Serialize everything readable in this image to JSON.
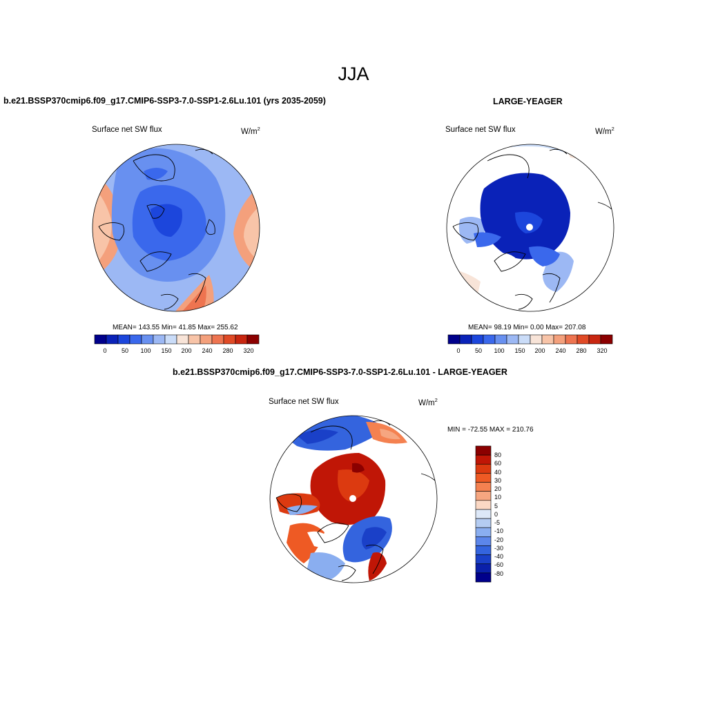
{
  "main_title": "JJA",
  "left_panel": {
    "case_title": "b.e21.BSSP370cmip6.f09_g17.CMIP6-SSP3-7.0-SSP1-2.6Lu.101 (yrs 2035-2059)",
    "variable": "Surface net SW flux",
    "units": "W/m",
    "units_sup": "2",
    "stats": "MEAN= 143.55  Min=  41.85  Max= 255.62",
    "colorbar_ticks": [
      "0",
      "50",
      "100",
      "150",
      "200",
      "240",
      "280",
      "320"
    ]
  },
  "right_panel": {
    "case_title": "LARGE-YEAGER",
    "variable": "Surface net SW flux",
    "units": "W/m",
    "units_sup": "2",
    "stats": "MEAN=  98.19  Min=   0.00  Max= 207.08",
    "colorbar_ticks": [
      "0",
      "50",
      "100",
      "150",
      "200",
      "240",
      "280",
      "320"
    ]
  },
  "diff_panel": {
    "case_title": "b.e21.BSSP370cmip6.f09_g17.CMIP6-SSP3-7.0-SSP1-2.6Lu.101 - LARGE-YEAGER",
    "variable": "Surface net SW flux",
    "units": "W/m",
    "units_sup": "2",
    "stats": "MIN = -72.55 MAX = 210.76",
    "colorbar_labels": [
      "80",
      "60",
      "40",
      "30",
      "20",
      "10",
      "5",
      "0",
      "-5",
      "-10",
      "-20",
      "-30",
      "-40",
      "-60",
      "-80"
    ]
  },
  "colors": {
    "field_scale": [
      "#00008b",
      "#0a22b8",
      "#1c46dc",
      "#3a68ec",
      "#6890f0",
      "#9cb8f4",
      "#cadcf8",
      "#f8e4d8",
      "#f8c4a8",
      "#f4a07c",
      "#ee7450",
      "#e04a26",
      "#c82610",
      "#8b0000"
    ],
    "diff_scale": [
      "#8b0000",
      "#c01606",
      "#dc3a10",
      "#ee5a24",
      "#f48150",
      "#f6a680",
      "#fbd8c4",
      "#dde8f8",
      "#b4ccf2",
      "#8aaef0",
      "#5c86ea",
      "#3464de",
      "#1a40c8",
      "#0a20aa",
      "#00008b"
    ]
  }
}
